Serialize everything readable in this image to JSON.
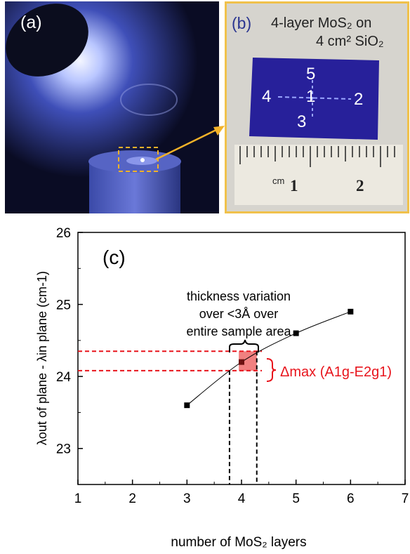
{
  "panel_a": {
    "label": "(a)"
  },
  "panel_b": {
    "label": "(b)",
    "caption_line1": "4-layer MoS₂ on",
    "caption_line2": "4 cm² SiO₂",
    "points": [
      "5",
      "4",
      "1",
      "2",
      "3"
    ],
    "ruler_unit": "cm",
    "ruler_numbers": [
      "1",
      "2"
    ]
  },
  "panel_c": {
    "label": "(c)",
    "annotation_lines": [
      "thickness variation",
      "over <3Å over",
      "entire sample area"
    ],
    "delta_label": "Δmax (A1g-E2g1)"
  },
  "chart_data": {
    "type": "scatter",
    "x": [
      3,
      4,
      5,
      6
    ],
    "y": [
      23.6,
      24.2,
      24.6,
      24.9
    ],
    "xlim": [
      1,
      7
    ],
    "ylim": [
      22.5,
      26
    ],
    "xticks": [
      "1",
      "2",
      "3",
      "4",
      "5",
      "6",
      "7"
    ],
    "yticks": [
      "23",
      "24",
      "25",
      "26"
    ],
    "xlabel": "number of MoS₂ layers",
    "ylabel": "λout of plane - λin plane (cm-1)",
    "band_y": [
      24.08,
      24.35
    ],
    "band_x": [
      3.78,
      4.28
    ],
    "colors": {
      "points": "#000000",
      "highlight": "#f08080",
      "dashes_red": "#e8141c",
      "delta_text": "#e8141c"
    }
  }
}
